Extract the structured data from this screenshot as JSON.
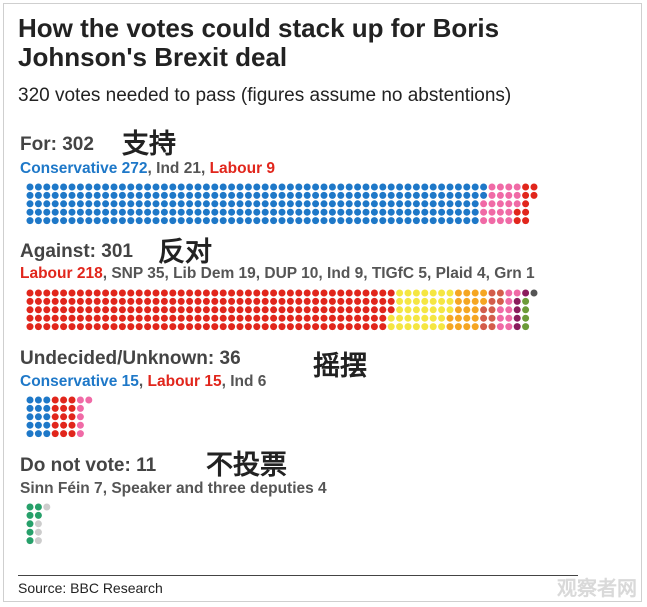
{
  "title": "How the votes could stack up for Boris Johnson's Brexit deal",
  "subtitle": "320 votes needed to pass (figures assume no abstentions)",
  "source": "Source: BBC Research",
  "watermark": "观察者网",
  "colors": {
    "Conservative": "#1e78c8",
    "Labour": "#e1261c",
    "Ind": "#f06aa6",
    "SNP": "#f5e642",
    "Lib Dem": "#f5a623",
    "DUP": "#d35d4b",
    "TIGfC": "#8a1c5c",
    "Plaid": "#6b9b39",
    "Grn": "#555555",
    "Sinn Fein": "#27a06a",
    "Speaker": "#cccccc",
    "text_default": "#555555"
  },
  "chart_data": {
    "type": "dot-stack",
    "sections": [
      {
        "heading": "For: 302",
        "cjk": "支持",
        "parts": [
          {
            "label": "Conservative 272",
            "party": "Conservative",
            "count": 272
          },
          {
            "label": "Ind 21",
            "party": "Ind",
            "count": 21
          },
          {
            "label": "Labour 9",
            "party": "Labour",
            "count": 9
          }
        ]
      },
      {
        "heading": "Against: 301",
        "cjk": "反对",
        "parts": [
          {
            "label": "Labour 218",
            "party": "Labour",
            "count": 218
          },
          {
            "label": "SNP 35",
            "party": "SNP",
            "count": 35
          },
          {
            "label": "Lib Dem 19",
            "party": "Lib Dem",
            "count": 19
          },
          {
            "label": "DUP 10",
            "party": "DUP",
            "count": 10
          },
          {
            "label": "Ind 9",
            "party": "Ind",
            "count": 9
          },
          {
            "label": "TIGfC 5",
            "party": "TIGfC",
            "count": 5
          },
          {
            "label": "Plaid 4",
            "party": "Plaid",
            "count": 4
          },
          {
            "label": "Grn 1",
            "party": "Grn",
            "count": 1
          }
        ]
      },
      {
        "heading": "Undecided/Unknown: 36",
        "cjk": "摇摆",
        "parts": [
          {
            "label": "Conservative 15",
            "party": "Conservative",
            "count": 15
          },
          {
            "label": "Labour 15",
            "party": "Labour",
            "count": 15
          },
          {
            "label": "Ind 6",
            "party": "Ind",
            "count": 6
          }
        ]
      },
      {
        "heading": "Do not vote: 11",
        "cjk": "不投票",
        "parts": [
          {
            "label": "Sinn Féin 7",
            "party": "Sinn Fein",
            "count": 7
          },
          {
            "label": "Speaker and three deputies 4",
            "party": "Speaker",
            "count": 4
          }
        ]
      }
    ]
  }
}
